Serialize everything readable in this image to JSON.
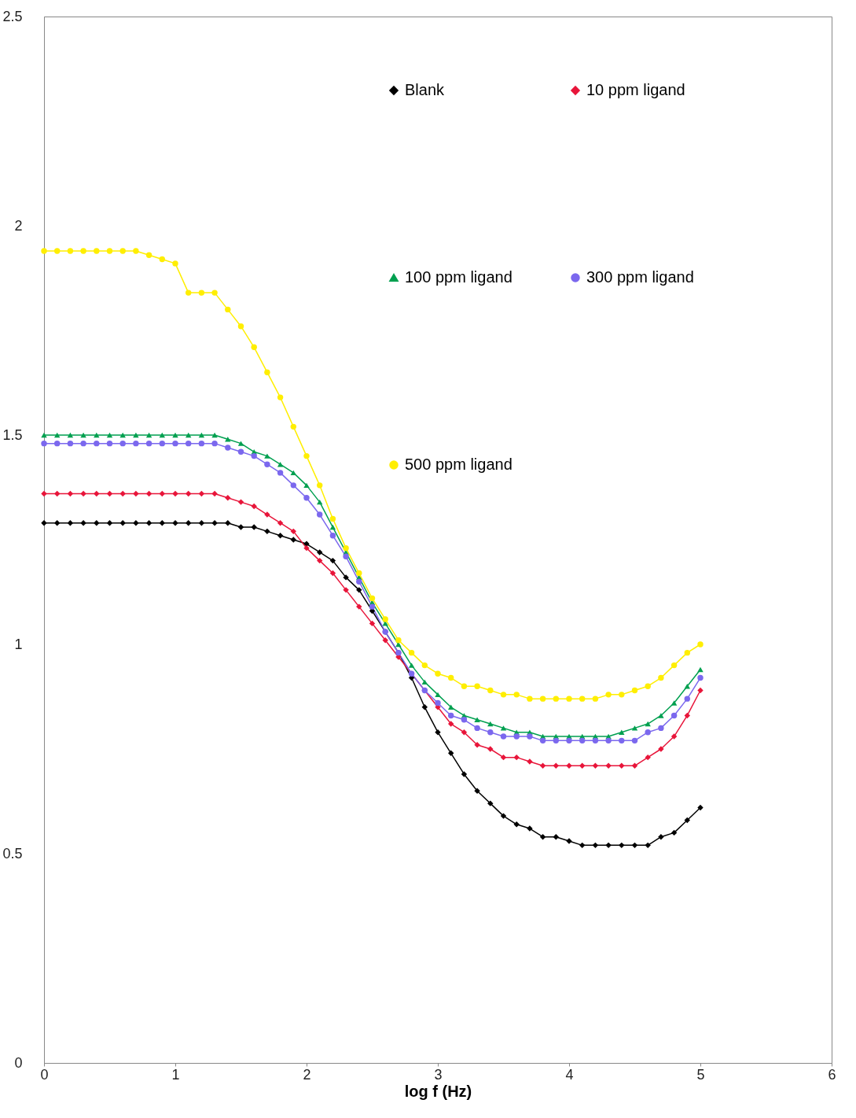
{
  "chart_data": {
    "type": "line",
    "xlabel": "log f (Hz)",
    "xlim": [
      0,
      6
    ],
    "xticks": [
      0,
      1,
      2,
      3,
      4,
      5,
      6
    ],
    "ylim": [
      0,
      2.5
    ],
    "yticks": [
      0,
      0.5,
      1,
      1.5,
      2,
      2.5
    ],
    "grid": false,
    "legend": "top right",
    "line_style": "solid",
    "x": [
      0,
      0.1,
      0.2,
      0.3,
      0.4,
      0.5,
      0.6,
      0.7,
      0.8,
      0.9,
      1,
      1.1,
      1.2,
      1.3,
      1.4,
      1.5,
      1.6,
      1.7,
      1.8,
      1.9,
      2,
      2.1,
      2.2,
      2.3,
      2.4,
      2.5,
      2.6,
      2.7,
      2.8,
      2.9,
      3,
      3.1,
      3.2,
      3.3,
      3.4,
      3.5,
      3.6,
      3.7,
      3.8,
      3.9,
      4,
      4.1,
      4.2,
      4.3,
      4.4,
      4.5,
      4.6,
      4.7,
      4.8,
      4.9,
      5
    ],
    "series": [
      {
        "name": "Blank",
        "color": "#000000",
        "marker": "diamond",
        "values": [
          1.29,
          1.29,
          1.29,
          1.29,
          1.29,
          1.29,
          1.29,
          1.29,
          1.29,
          1.29,
          1.29,
          1.29,
          1.29,
          1.29,
          1.29,
          1.28,
          1.28,
          1.27,
          1.26,
          1.25,
          1.24,
          1.22,
          1.2,
          1.16,
          1.13,
          1.08,
          1.03,
          0.98,
          0.92,
          0.85,
          0.79,
          0.74,
          0.69,
          0.65,
          0.62,
          0.59,
          0.57,
          0.56,
          0.54,
          0.54,
          0.53,
          0.52,
          0.52,
          0.52,
          0.52,
          0.52,
          0.52,
          0.54,
          0.55,
          0.58,
          0.61
        ]
      },
      {
        "name": "10 ppm ligand",
        "color": "#e8153a",
        "marker": "diamond",
        "values": [
          1.36,
          1.36,
          1.36,
          1.36,
          1.36,
          1.36,
          1.36,
          1.36,
          1.36,
          1.36,
          1.36,
          1.36,
          1.36,
          1.36,
          1.35,
          1.34,
          1.33,
          1.31,
          1.29,
          1.27,
          1.23,
          1.2,
          1.17,
          1.13,
          1.09,
          1.05,
          1.01,
          0.97,
          0.93,
          0.89,
          0.85,
          0.81,
          0.79,
          0.76,
          0.75,
          0.73,
          0.73,
          0.72,
          0.71,
          0.71,
          0.71,
          0.71,
          0.71,
          0.71,
          0.71,
          0.71,
          0.73,
          0.75,
          0.78,
          0.83,
          0.89
        ]
      },
      {
        "name": "100 ppm ligand",
        "color": "#00a050",
        "marker": "triangle",
        "values": [
          1.5,
          1.5,
          1.5,
          1.5,
          1.5,
          1.5,
          1.5,
          1.5,
          1.5,
          1.5,
          1.5,
          1.5,
          1.5,
          1.5,
          1.49,
          1.48,
          1.46,
          1.45,
          1.43,
          1.41,
          1.38,
          1.34,
          1.28,
          1.22,
          1.16,
          1.1,
          1.05,
          1,
          0.95,
          0.91,
          0.88,
          0.85,
          0.83,
          0.82,
          0.81,
          0.8,
          0.79,
          0.79,
          0.78,
          0.78,
          0.78,
          0.78,
          0.78,
          0.78,
          0.79,
          0.8,
          0.81,
          0.83,
          0.86,
          0.9,
          0.94
        ]
      },
      {
        "name": "300 ppm ligand",
        "color": "#7b68ee",
        "marker": "circle",
        "values": [
          1.48,
          1.48,
          1.48,
          1.48,
          1.48,
          1.48,
          1.48,
          1.48,
          1.48,
          1.48,
          1.48,
          1.48,
          1.48,
          1.48,
          1.47,
          1.46,
          1.45,
          1.43,
          1.41,
          1.38,
          1.35,
          1.31,
          1.26,
          1.21,
          1.15,
          1.09,
          1.03,
          0.98,
          0.93,
          0.89,
          0.86,
          0.83,
          0.82,
          0.8,
          0.79,
          0.78,
          0.78,
          0.78,
          0.77,
          0.77,
          0.77,
          0.77,
          0.77,
          0.77,
          0.77,
          0.77,
          0.79,
          0.8,
          0.83,
          0.87,
          0.92
        ]
      },
      {
        "name": "500 ppm ligand",
        "color": "#ffee00",
        "marker": "circle",
        "values": [
          1.94,
          1.94,
          1.94,
          1.94,
          1.94,
          1.94,
          1.94,
          1.94,
          1.93,
          1.92,
          1.91,
          1.84,
          1.84,
          1.84,
          1.8,
          1.76,
          1.71,
          1.65,
          1.59,
          1.52,
          1.45,
          1.38,
          1.3,
          1.23,
          1.17,
          1.11,
          1.06,
          1.01,
          0.98,
          0.95,
          0.93,
          0.92,
          0.9,
          0.9,
          0.89,
          0.88,
          0.88,
          0.87,
          0.87,
          0.87,
          0.87,
          0.87,
          0.87,
          0.88,
          0.88,
          0.89,
          0.9,
          0.92,
          0.95,
          0.98,
          1
        ]
      }
    ]
  }
}
